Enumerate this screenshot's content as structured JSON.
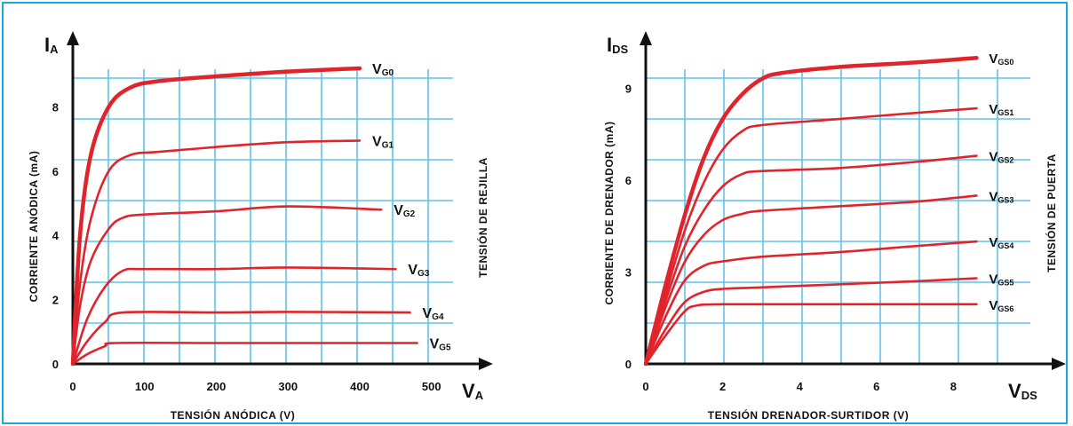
{
  "chart_data": [
    {
      "type": "line",
      "x_symbol": {
        "main": "V",
        "sub": "A"
      },
      "y_symbol": {
        "main": "I",
        "sub": "A"
      },
      "xlabel": "TENSIÓN ANÓDICA (V)",
      "ylabel": "CORRIENTE ANÓDICA (mA)",
      "side_label": "TENSIÓN DE REJILLA",
      "x_ticks": [
        0,
        100,
        200,
        300,
        400,
        500
      ],
      "y_ticks": [
        0,
        2,
        4,
        6,
        8
      ],
      "xlim": [
        0,
        530
      ],
      "ylim": [
        0,
        10
      ],
      "grid": true,
      "series": [
        {
          "name": "VG0",
          "label_main": "V",
          "label_sub": "G0",
          "x": [
            0,
            10,
            25,
            50,
            80,
            120,
            200,
            300,
            400
          ],
          "values": [
            0,
            4.0,
            6.5,
            8.0,
            8.6,
            8.8,
            8.95,
            9.1,
            9.2
          ]
        },
        {
          "name": "VG1",
          "label_main": "V",
          "label_sub": "G1",
          "x": [
            0,
            10,
            25,
            50,
            80,
            120,
            200,
            300,
            400
          ],
          "values": [
            0,
            2.5,
            4.5,
            6.0,
            6.5,
            6.6,
            6.75,
            6.9,
            6.95
          ]
        },
        {
          "name": "VG2",
          "label_main": "V",
          "label_sub": "G2",
          "x": [
            0,
            10,
            25,
            50,
            70,
            100,
            200,
            300,
            430
          ],
          "values": [
            0,
            1.8,
            3.2,
            4.2,
            4.55,
            4.65,
            4.75,
            4.9,
            4.8
          ]
        },
        {
          "name": "VG3",
          "label_main": "V",
          "label_sub": "G3",
          "x": [
            0,
            20,
            45,
            70,
            100,
            200,
            300,
            450
          ],
          "values": [
            0,
            1.4,
            2.4,
            2.9,
            2.95,
            2.95,
            3.0,
            2.95
          ]
        },
        {
          "name": "VG4",
          "label_main": "V",
          "label_sub": "G4",
          "x": [
            0,
            20,
            45,
            70,
            200,
            300,
            470
          ],
          "values": [
            0,
            0.7,
            1.3,
            1.6,
            1.6,
            1.62,
            1.6
          ]
        },
        {
          "name": "VG5",
          "label_main": "V",
          "label_sub": "G5",
          "x": [
            0,
            20,
            45,
            60,
            200,
            300,
            480
          ],
          "values": [
            0,
            0.3,
            0.55,
            0.65,
            0.65,
            0.65,
            0.65
          ]
        }
      ]
    },
    {
      "type": "line",
      "x_symbol": {
        "main": "V",
        "sub": "DS"
      },
      "y_symbol": {
        "main": "I",
        "sub": "DS"
      },
      "xlabel": "TENSIÓN DRENADOR-SURTIDOR (V)",
      "ylabel": "CORRIENTE DE DRENADOR (mA)",
      "side_label": "TENSIÓN DE PUERTA",
      "x_ticks": [
        0,
        2,
        4,
        6,
        8
      ],
      "y_ticks": [
        0,
        3,
        6,
        9
      ],
      "xlim": [
        0,
        10
      ],
      "ylim": [
        0,
        10.5
      ],
      "grid": true,
      "series": [
        {
          "name": "VGS0",
          "label_main": "V",
          "label_sub": "GS0",
          "x": [
            0,
            0.5,
            1,
            1.5,
            2,
            2.5,
            3,
            3.5,
            5,
            7,
            8.6
          ],
          "values": [
            0,
            2.5,
            4.8,
            6.7,
            8.0,
            8.8,
            9.3,
            9.5,
            9.7,
            9.85,
            10.0
          ]
        },
        {
          "name": "VGS1",
          "label_main": "V",
          "label_sub": "GS1",
          "x": [
            0,
            0.5,
            1,
            1.5,
            2,
            2.5,
            3,
            5,
            7,
            8.6
          ],
          "values": [
            0,
            2.2,
            4.3,
            5.9,
            7.0,
            7.6,
            7.8,
            8.0,
            8.2,
            8.35
          ]
        },
        {
          "name": "VGS2",
          "label_main": "V",
          "label_sub": "GS2",
          "x": [
            0,
            0.5,
            1,
            1.5,
            2,
            2.5,
            3,
            5,
            7,
            8.6
          ],
          "values": [
            0,
            2.0,
            3.8,
            5.0,
            5.8,
            6.2,
            6.3,
            6.4,
            6.6,
            6.8
          ]
        },
        {
          "name": "VGS3",
          "label_main": "V",
          "label_sub": "GS3",
          "x": [
            0,
            0.5,
            1,
            1.5,
            2,
            2.5,
            3,
            5,
            7,
            8.6
          ],
          "values": [
            0,
            1.8,
            3.3,
            4.2,
            4.7,
            4.9,
            5.0,
            5.15,
            5.3,
            5.5
          ]
        },
        {
          "name": "VGS4",
          "label_main": "V",
          "label_sub": "GS4",
          "x": [
            0,
            0.5,
            1,
            1.5,
            2,
            3,
            5,
            7,
            8.6
          ],
          "values": [
            0,
            1.5,
            2.7,
            3.2,
            3.35,
            3.5,
            3.65,
            3.85,
            4.0
          ]
        },
        {
          "name": "VGS5",
          "label_main": "V",
          "label_sub": "GS5",
          "x": [
            0,
            0.5,
            1,
            1.5,
            2,
            3,
            5,
            7,
            8.6
          ],
          "values": [
            0,
            1.1,
            2.0,
            2.35,
            2.45,
            2.5,
            2.6,
            2.7,
            2.8
          ]
        },
        {
          "name": "VGS6",
          "label_main": "V",
          "label_sub": "GS6",
          "x": [
            0,
            0.5,
            1,
            1.3,
            2,
            5,
            8.6
          ],
          "values": [
            0,
            0.9,
            1.7,
            1.9,
            1.95,
            1.95,
            1.95
          ]
        }
      ]
    }
  ],
  "colors": {
    "curve": "#e0242c",
    "grid": "#5fc4ec",
    "axis": "#111111",
    "frame": "#1aa7e0"
  }
}
